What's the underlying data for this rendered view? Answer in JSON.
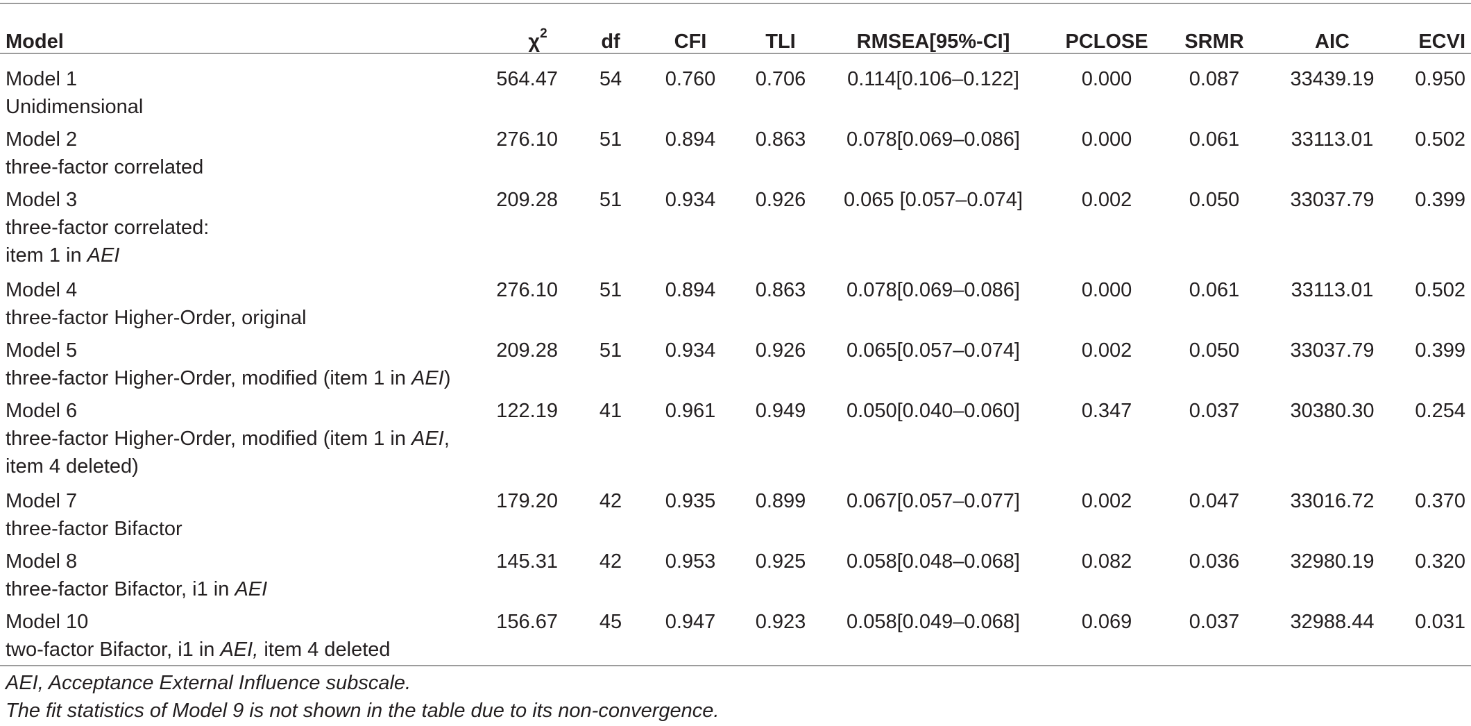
{
  "table": {
    "headers": {
      "model": "Model",
      "chi": "χ",
      "chi_sup": "2",
      "df": "df",
      "cfi": "CFI",
      "tli": "TLI",
      "rmsea": "RMSEA[95%-CI]",
      "pclose": "PCLOSE",
      "srmr": "SRMR",
      "aic": "AIC",
      "ecvi": "ECVI"
    },
    "rows": [
      {
        "model": "Model 1",
        "desc": [
          "Unidimensional"
        ],
        "chi": "564.47",
        "df": "54",
        "cfi": "0.760",
        "tli": "0.706",
        "rmsea": "0.114[0.106–0.122]",
        "pclose": "0.000",
        "srmr": "0.087",
        "aic": "33439.19",
        "ecvi": "0.950"
      },
      {
        "model": "Model 2",
        "desc": [
          "three-factor correlated"
        ],
        "chi": "276.10",
        "df": "51",
        "cfi": "0.894",
        "tli": "0.863",
        "rmsea": "0.078[0.069–0.086]",
        "pclose": "0.000",
        "srmr": "0.061",
        "aic": "33113.01",
        "ecvi": "0.502"
      },
      {
        "model": "Model 3",
        "desc": [
          "three-factor correlated:",
          "item 1 in ",
          "AEI",
          ""
        ],
        "chi": "209.28",
        "df": "51",
        "cfi": "0.934",
        "tli": "0.926",
        "rmsea": "0.065 [0.057–0.074]",
        "pclose": "0.002",
        "srmr": "0.050",
        "aic": "33037.79",
        "ecvi": "0.399"
      },
      {
        "model": "Model 4",
        "desc": [
          "three-factor Higher-Order, original"
        ],
        "chi": "276.10",
        "df": "51",
        "cfi": "0.894",
        "tli": "0.863",
        "rmsea": "0.078[0.069–0.086]",
        "pclose": "0.000",
        "srmr": "0.061",
        "aic": "33113.01",
        "ecvi": "0.502"
      },
      {
        "model": "Model 5",
        "desc": [
          "three-factor Higher-Order, modified (item 1 in ",
          "AEI",
          ")"
        ],
        "chi": "209.28",
        "df": "51",
        "cfi": "0.934",
        "tli": "0.926",
        "rmsea": "0.065[0.057–0.074]",
        "pclose": "0.002",
        "srmr": "0.050",
        "aic": "33037.79",
        "ecvi": "0.399"
      },
      {
        "model": "Model 6",
        "desc": [
          "three-factor Higher-Order, modified (item 1 in ",
          "AEI",
          ",",
          "item 4 deleted)"
        ],
        "chi": "122.19",
        "df": "41",
        "cfi": "0.961",
        "tli": "0.949",
        "rmsea": "0.050[0.040–0.060]",
        "pclose": "0.347",
        "srmr": "0.037",
        "aic": "30380.30",
        "ecvi": "0.254"
      },
      {
        "model": "Model 7",
        "desc": [
          "three-factor Bifactor"
        ],
        "chi": "179.20",
        "df": "42",
        "cfi": "0.935",
        "tli": "0.899",
        "rmsea": "0.067[0.057–0.077]",
        "pclose": "0.002",
        "srmr": "0.047",
        "aic": "33016.72",
        "ecvi": "0.370"
      },
      {
        "model": "Model 8",
        "desc": [
          "three-factor Bifactor, i1 in ",
          "AEI",
          ""
        ],
        "chi": "145.31",
        "df": "42",
        "cfi": "0.953",
        "tli": "0.925",
        "rmsea": "0.058[0.048–0.068]",
        "pclose": "0.082",
        "srmr": "0.036",
        "aic": "32980.19",
        "ecvi": "0.320"
      },
      {
        "model": "Model 10",
        "desc": [
          "two-factor Bifactor, i1 in ",
          "AEI,",
          " item 4 deleted"
        ],
        "chi": "156.67",
        "df": "45",
        "cfi": "0.947",
        "tli": "0.923",
        "rmsea": "0.058[0.049–0.068]",
        "pclose": "0.069",
        "srmr": "0.037",
        "aic": "32988.44",
        "ecvi": "0.031"
      }
    ]
  },
  "footnotes": [
    "AEI, Acceptance External Influence subscale.",
    "The fit statistics of Model 9 is not shown in the table due to its non-convergence."
  ]
}
